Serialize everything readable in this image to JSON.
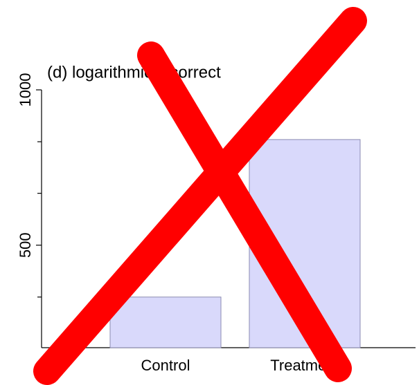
{
  "chart_data": {
    "type": "bar",
    "title": "(d) logarithmic incorrect",
    "categories": [
      "Control",
      "Treatment"
    ],
    "values": [
      333,
      840
    ],
    "color": "#d9d9fb",
    "ylim": [
      170,
      1000
    ],
    "yticks": [
      500,
      1000
    ],
    "minor_yticks": [
      333,
      667,
      833
    ]
  }
}
